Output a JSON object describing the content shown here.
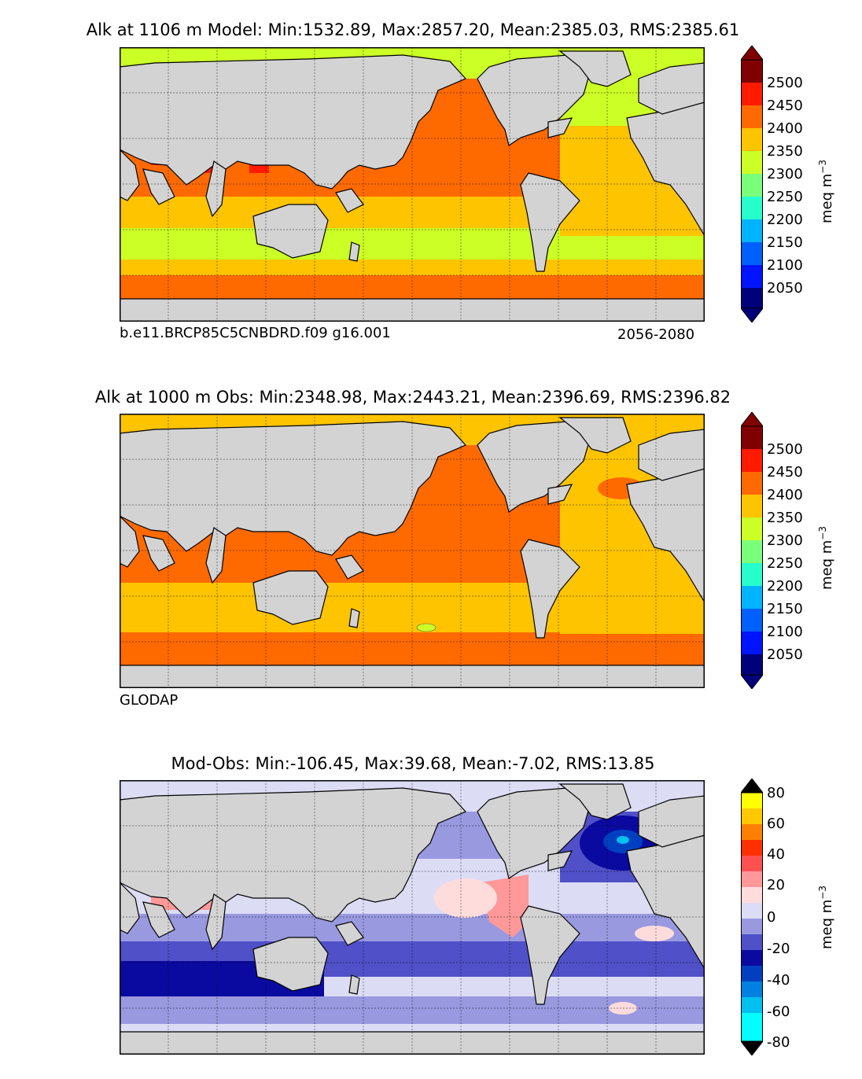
{
  "panels": [
    {
      "title": "Alk at 1106 m Model: Min:1532.89, Max:2857.20, Mean:2385.03, RMS:2385.61",
      "caption_left": "b.e11.BRCP85C5CNBDRD.f09 g16.001",
      "caption_right": "2056-2080",
      "colorbar": {
        "unit_main": "meq m",
        "unit_sup": "−3",
        "ticks": [
          "2500",
          "2450",
          "2400",
          "2350",
          "2300",
          "2250",
          "2200",
          "2150",
          "2100",
          "2050"
        ],
        "colors_top_to_bottom": [
          "#800000",
          "#ff1a00",
          "#ff6a00",
          "#ffc400",
          "#ccff26",
          "#7aff7a",
          "#26ffcc",
          "#00b4ff",
          "#0060ff",
          "#0014ff",
          "#00007a"
        ]
      }
    },
    {
      "title": "Alk at 1000 m Obs: Min:2348.98, Max:2443.21, Mean:2396.69, RMS:2396.82",
      "caption_left": "GLODAP",
      "caption_right": "",
      "colorbar": {
        "unit_main": "meq m",
        "unit_sup": "−3",
        "ticks": [
          "2500",
          "2450",
          "2400",
          "2350",
          "2300",
          "2250",
          "2200",
          "2150",
          "2100",
          "2050"
        ],
        "colors_top_to_bottom": [
          "#800000",
          "#ff1a00",
          "#ff6a00",
          "#ffc400",
          "#ccff26",
          "#7aff7a",
          "#26ffcc",
          "#00b4ff",
          "#0060ff",
          "#0014ff",
          "#00007a"
        ]
      }
    },
    {
      "title": "Mod-Obs: Min:-106.45, Max:39.68, Mean:-7.02, RMS:13.85",
      "caption_left": "",
      "caption_right": "",
      "colorbar": {
        "unit_main": "meq m",
        "unit_sup": "−3",
        "ticks": [
          "80",
          "60",
          "40",
          "20",
          "0",
          "-20",
          "-40",
          "-60",
          "-80"
        ],
        "colors_top_to_bottom": [
          "#ffff00",
          "#ffc800",
          "#ff8000",
          "#ff3000",
          "#ff5050",
          "#ff9999",
          "#ffdcdc",
          "#dcdcf5",
          "#9999e0",
          "#5050c8",
          "#0a0aa0",
          "#0040c0",
          "#0080e0",
          "#00c0f0",
          "#00ffff"
        ]
      }
    }
  ]
}
